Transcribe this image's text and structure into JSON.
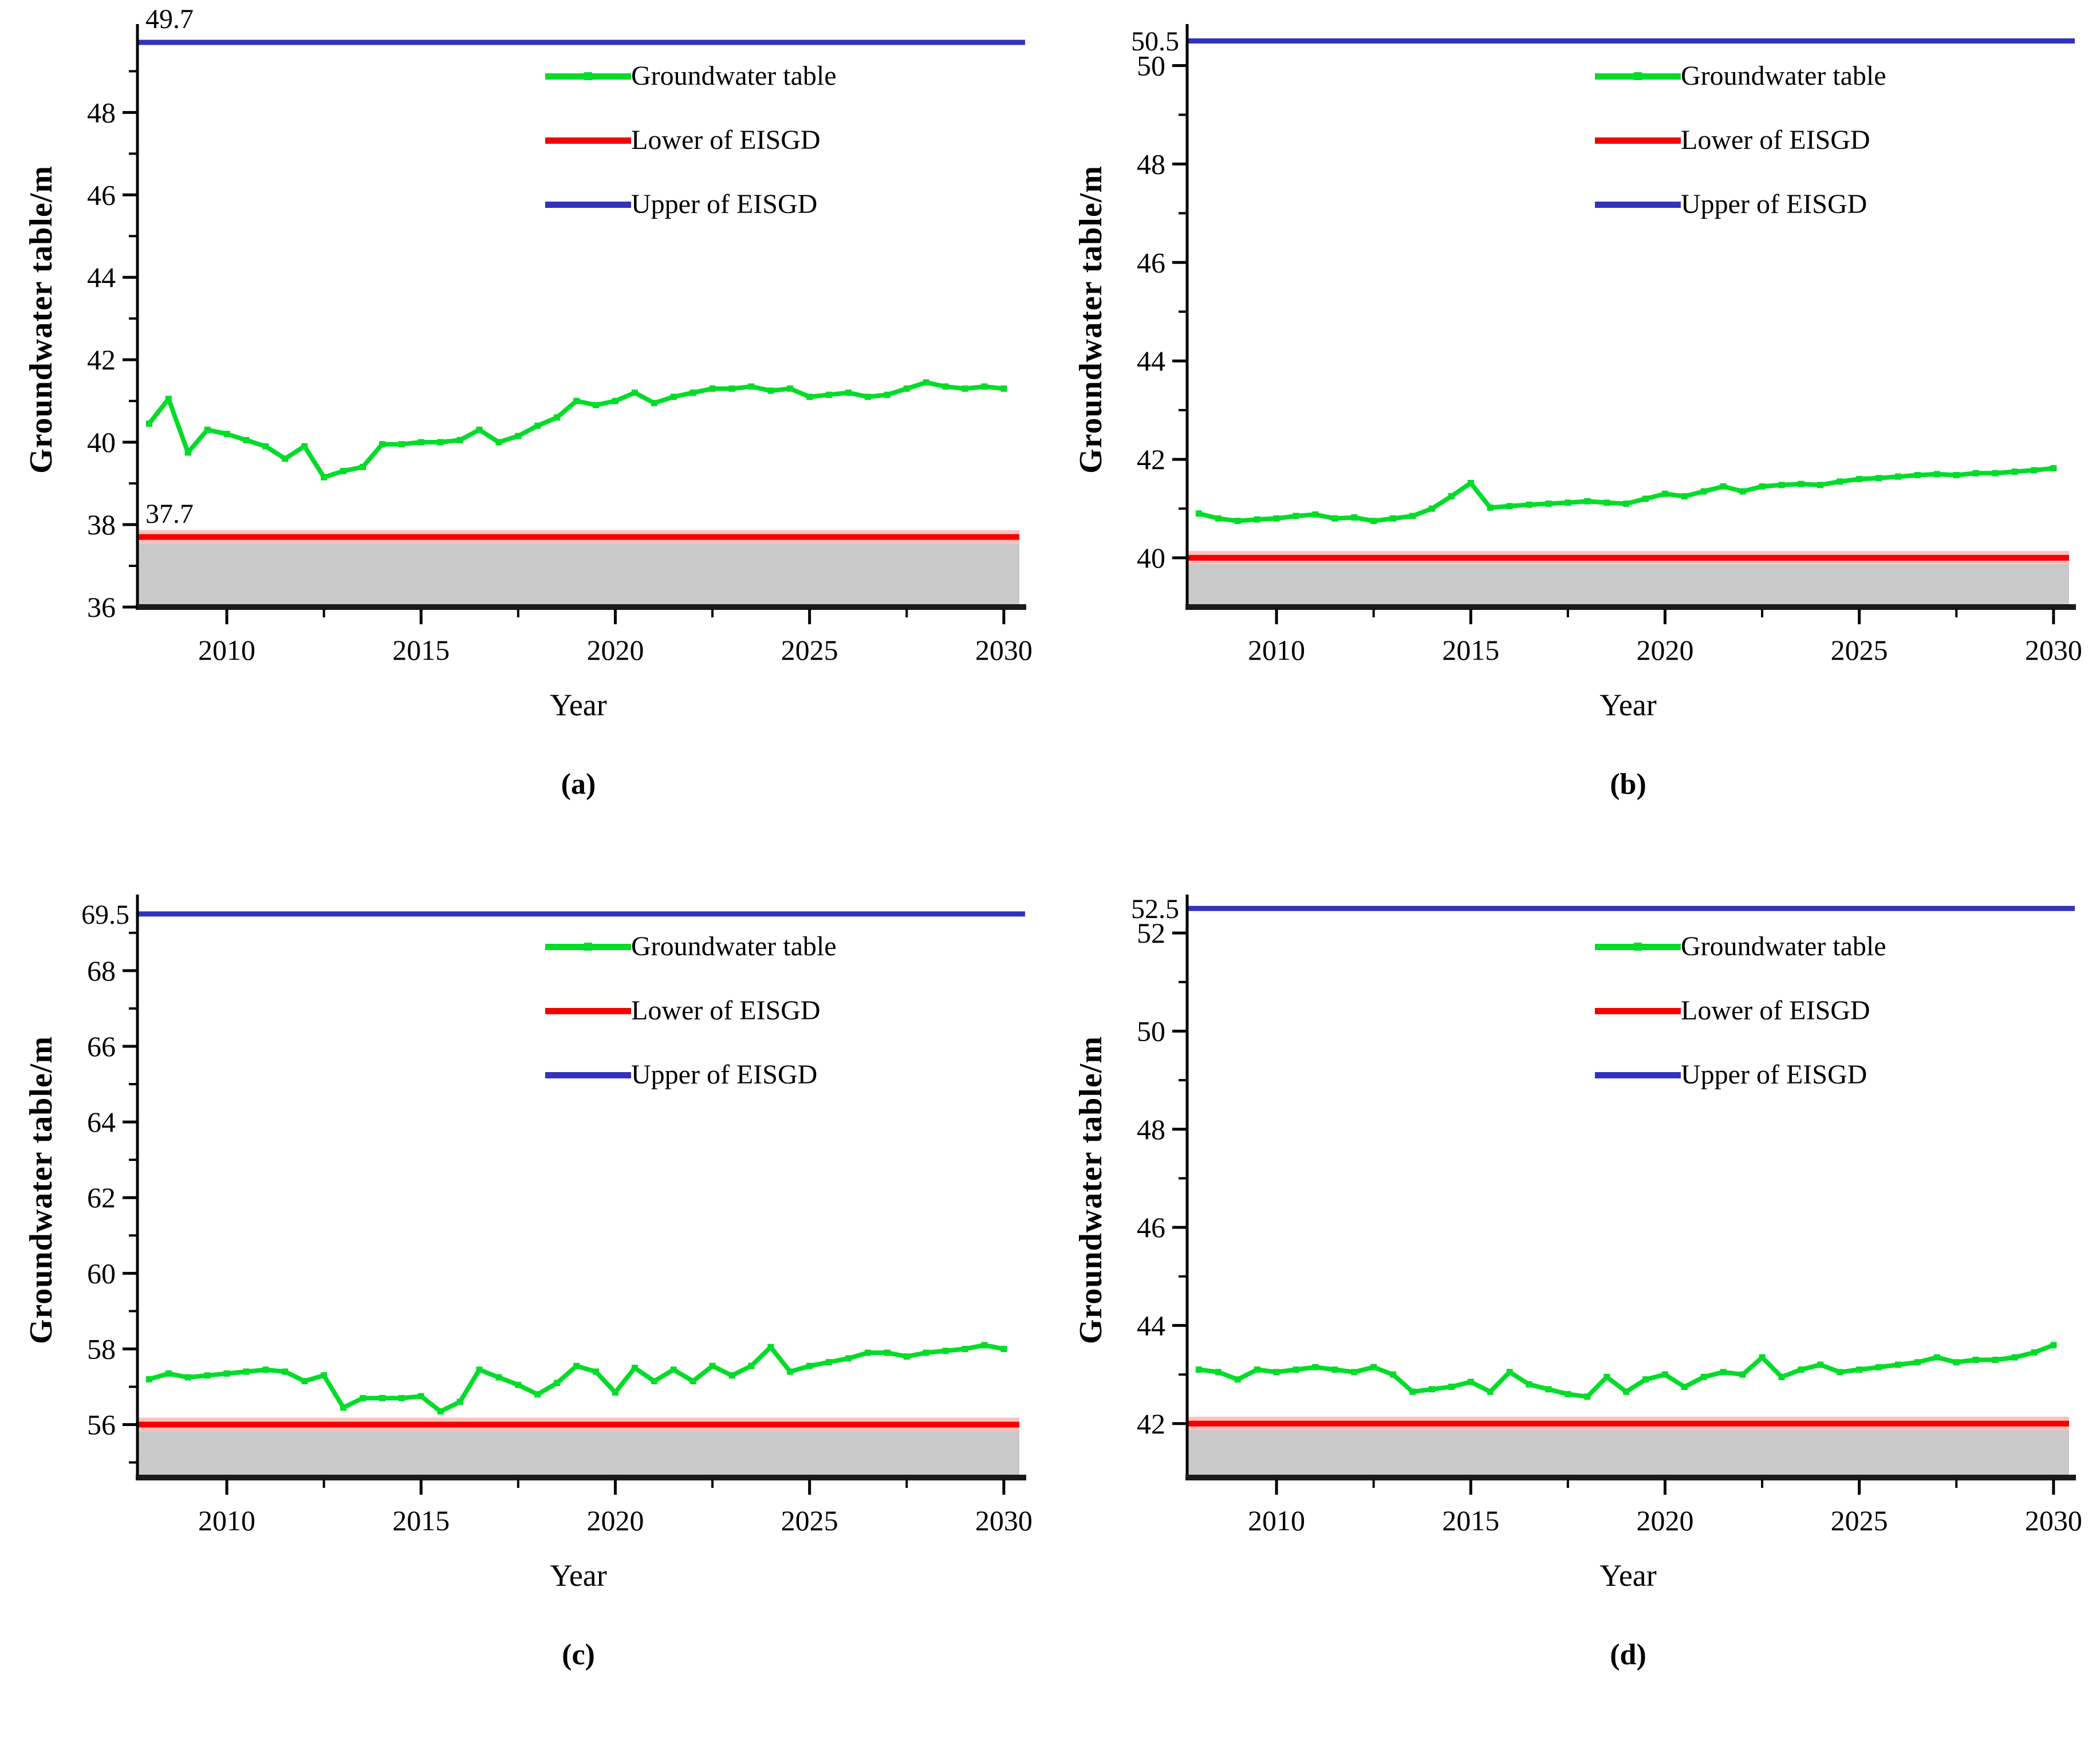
{
  "figure": {
    "x_axis_label": "Year",
    "legend": {
      "groundwater": "Groundwater table",
      "lower": "Lower of EISGD",
      "upper": "Upper of EISGD"
    },
    "colors": {
      "groundwater": "#00DC28",
      "lower": "#F40000",
      "lower_halo": "#FFBFBF",
      "upper": "#3232BE",
      "fill_below_lower": "#C9C9C9",
      "axis": "#000000"
    },
    "x_years": [
      2008,
      2008.5,
      2009,
      2009.5,
      2010,
      2010.5,
      2011,
      2011.5,
      2012,
      2012.5,
      2013,
      2013.5,
      2014,
      2014.5,
      2015,
      2015.5,
      2016,
      2016.5,
      2017,
      2017.5,
      2018,
      2018.5,
      2019,
      2019.5,
      2020,
      2020.5,
      2021,
      2021.5,
      2022,
      2022.5,
      2023,
      2023.5,
      2024,
      2024.5,
      2025,
      2025.5,
      2026,
      2026.5,
      2027,
      2027.5,
      2028,
      2028.5,
      2029,
      2029.5,
      2030
    ]
  },
  "chart_data": [
    {
      "id": "a",
      "type": "line",
      "caption": "(a)",
      "xlabel": "Year",
      "ylabel": "Groundwater table/m",
      "x_range": [
        2007.7,
        2030.4
      ],
      "y_range": [
        36,
        49.95
      ],
      "x_ticks": [
        2010,
        2015,
        2020,
        2025,
        2030
      ],
      "y_ticks": [
        36,
        38,
        40,
        42,
        44,
        46,
        48
      ],
      "minor_x_step": 2.5,
      "minor_y_step": 1,
      "lower_of_EISGD": 37.7,
      "upper_of_EISGD": 49.7,
      "upper_annotation": "49.7",
      "lower_annotation": "37.7",
      "annotation_style": "inside",
      "legend_position": "top-right",
      "series": {
        "name": "Groundwater table",
        "values": [
          40.45,
          41.05,
          39.75,
          40.3,
          40.2,
          40.05,
          39.9,
          39.6,
          39.9,
          39.15,
          39.3,
          39.4,
          39.95,
          39.95,
          40.0,
          40.0,
          40.05,
          40.3,
          40.0,
          40.15,
          40.4,
          40.6,
          41.0,
          40.9,
          41.0,
          41.2,
          40.95,
          41.1,
          41.2,
          41.3,
          41.3,
          41.35,
          41.25,
          41.3,
          41.1,
          41.15,
          41.2,
          41.1,
          41.15,
          41.3,
          41.45,
          41.35,
          41.3,
          41.35,
          41.3
        ]
      }
    },
    {
      "id": "b",
      "type": "line",
      "caption": "(b)",
      "xlabel": "Year",
      "ylabel": "Groundwater table/m",
      "x_range": [
        2007.7,
        2030.4
      ],
      "y_range": [
        39.0,
        50.68
      ],
      "x_ticks": [
        2010,
        2015,
        2020,
        2025,
        2030
      ],
      "y_ticks": [
        40,
        42,
        44,
        46,
        48,
        50
      ],
      "minor_x_step": 2.5,
      "minor_y_step": 1,
      "lower_of_EISGD": 40.0,
      "upper_of_EISGD": 50.5,
      "upper_annotation": "50.5",
      "annotation_style": "outside-left",
      "legend_position": "top-right",
      "series": {
        "name": "Groundwater table",
        "values": [
          40.9,
          40.8,
          40.75,
          40.78,
          40.8,
          40.85,
          40.88,
          40.8,
          40.82,
          40.75,
          40.8,
          40.85,
          41.0,
          41.25,
          41.52,
          41.02,
          41.05,
          41.08,
          41.1,
          41.12,
          41.15,
          41.12,
          41.1,
          41.2,
          41.3,
          41.25,
          41.35,
          41.45,
          41.35,
          41.45,
          41.48,
          41.5,
          41.48,
          41.55,
          41.6,
          41.62,
          41.65,
          41.68,
          41.7,
          41.68,
          41.72,
          41.72,
          41.75,
          41.78,
          41.82
        ]
      }
    },
    {
      "id": "c",
      "type": "line",
      "caption": "(c)",
      "xlabel": "Year",
      "ylabel": "Groundwater table/m",
      "x_range": [
        2007.7,
        2030.4
      ],
      "y_range": [
        54.6,
        69.8
      ],
      "x_ticks": [
        2010,
        2015,
        2020,
        2025,
        2030
      ],
      "y_ticks": [
        56,
        58,
        60,
        62,
        64,
        66,
        68
      ],
      "minor_x_step": 2.5,
      "minor_y_step": 1,
      "lower_of_EISGD": 56.0,
      "upper_of_EISGD": 69.5,
      "upper_annotation": "69.5",
      "annotation_style": "outside-left",
      "legend_position": "top-right",
      "series": {
        "name": "Groundwater table",
        "values": [
          57.2,
          57.35,
          57.25,
          57.3,
          57.35,
          57.4,
          57.45,
          57.4,
          57.15,
          57.3,
          56.45,
          56.7,
          56.7,
          56.7,
          56.75,
          56.35,
          56.6,
          57.45,
          57.25,
          57.05,
          56.8,
          57.1,
          57.55,
          57.4,
          56.85,
          57.5,
          57.15,
          57.45,
          57.15,
          57.55,
          57.3,
          57.55,
          58.05,
          57.4,
          57.55,
          57.65,
          57.75,
          57.9,
          57.9,
          57.8,
          57.9,
          57.95,
          58.0,
          58.1,
          58.0
        ]
      }
    },
    {
      "id": "d",
      "type": "line",
      "caption": "(d)",
      "xlabel": "Year",
      "ylabel": "Groundwater table/m",
      "x_range": [
        2007.7,
        2030.4
      ],
      "y_range": [
        40.9,
        52.62
      ],
      "x_ticks": [
        2010,
        2015,
        2020,
        2025,
        2030
      ],
      "y_ticks": [
        42,
        44,
        46,
        48,
        50,
        52
      ],
      "minor_x_step": 2.5,
      "minor_y_step": 1,
      "lower_of_EISGD": 42.0,
      "upper_of_EISGD": 52.5,
      "upper_annotation": "52.5",
      "annotation_style": "outside-left",
      "legend_position": "top-right",
      "series": {
        "name": "Groundwater table",
        "values": [
          43.1,
          43.05,
          42.9,
          43.1,
          43.05,
          43.1,
          43.15,
          43.1,
          43.05,
          43.15,
          43.0,
          42.65,
          42.7,
          42.75,
          42.85,
          42.65,
          43.05,
          42.8,
          42.7,
          42.6,
          42.55,
          42.95,
          42.65,
          42.9,
          43.0,
          42.75,
          42.95,
          43.05,
          43.0,
          43.35,
          42.95,
          43.1,
          43.2,
          43.05,
          43.1,
          43.15,
          43.2,
          43.25,
          43.35,
          43.25,
          43.3,
          43.3,
          43.35,
          43.45,
          43.6
        ]
      }
    }
  ]
}
